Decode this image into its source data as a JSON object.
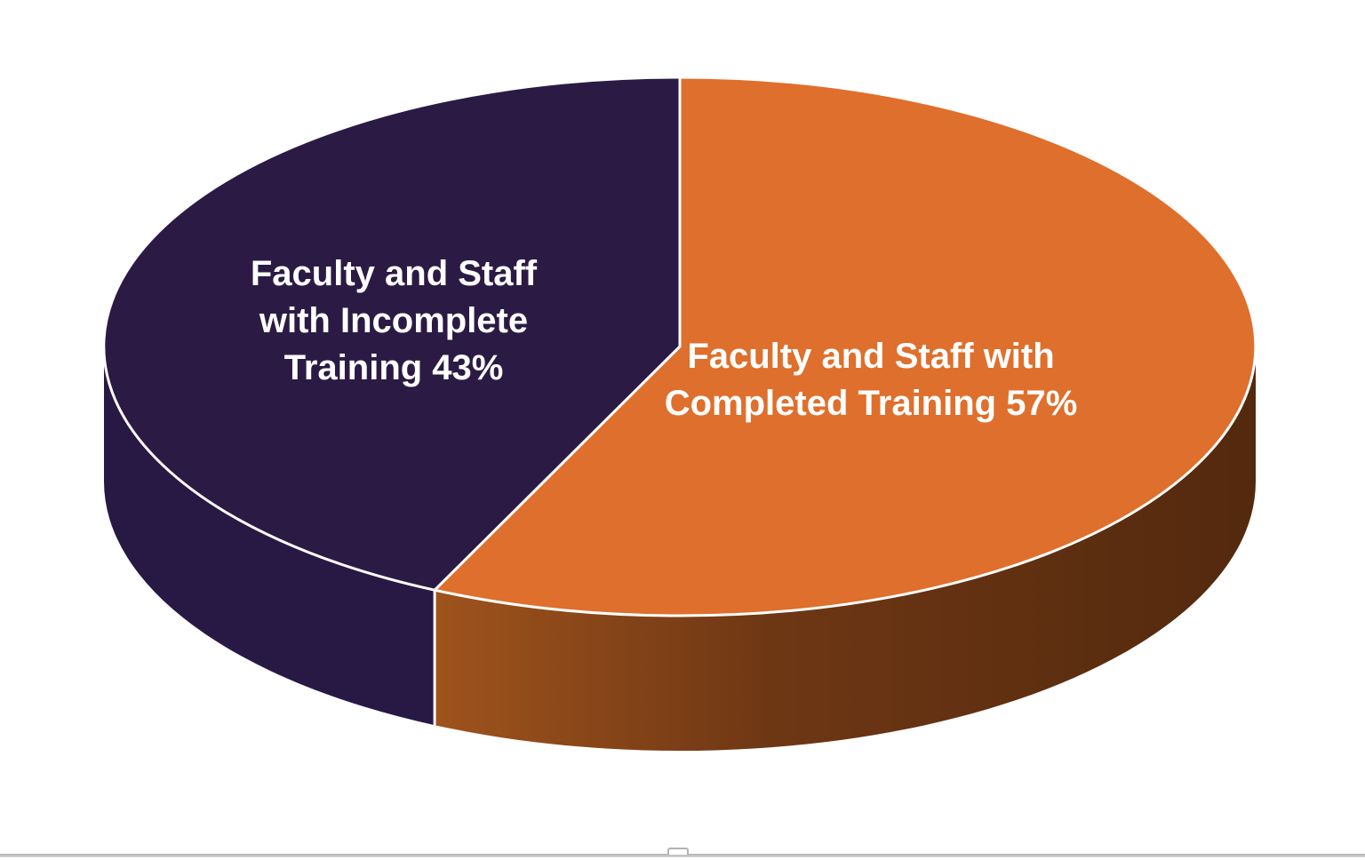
{
  "chart_data": {
    "type": "pie",
    "style": "3d",
    "title": "",
    "legend": "none",
    "labels_on_slices": true,
    "label_color": "#FFFFFF",
    "outline_color": "#FFFFFF",
    "background_color": "#FFFFFF",
    "start_angle_deg": -90,
    "direction": "clockwise",
    "categories": [
      "Faculty and Staff with Completed Training",
      "Faculty and Staff with Incomplete Training"
    ],
    "values": [
      57,
      43
    ],
    "slices": [
      {
        "label": "Faculty and Staff with Completed Training",
        "value": 57,
        "unit": "%",
        "display_text": "Faculty and Staff with\nCompleted Training 57%",
        "top_color": "#DF6F2C",
        "side_color_start": "#A8581E",
        "side_color_mid": "#6E3714",
        "side_color_end": "#53290E"
      },
      {
        "label": "Faculty and Staff with Incomplete Training",
        "value": 43,
        "unit": "%",
        "display_text": "Faculty and Staff\nwith Incomplete\nTraining 43%",
        "top_color": "#2B1B44",
        "side_color": "#281944"
      }
    ]
  },
  "page": {
    "edge_line_color": "#B3B3B3",
    "has_resize_handle": true
  }
}
